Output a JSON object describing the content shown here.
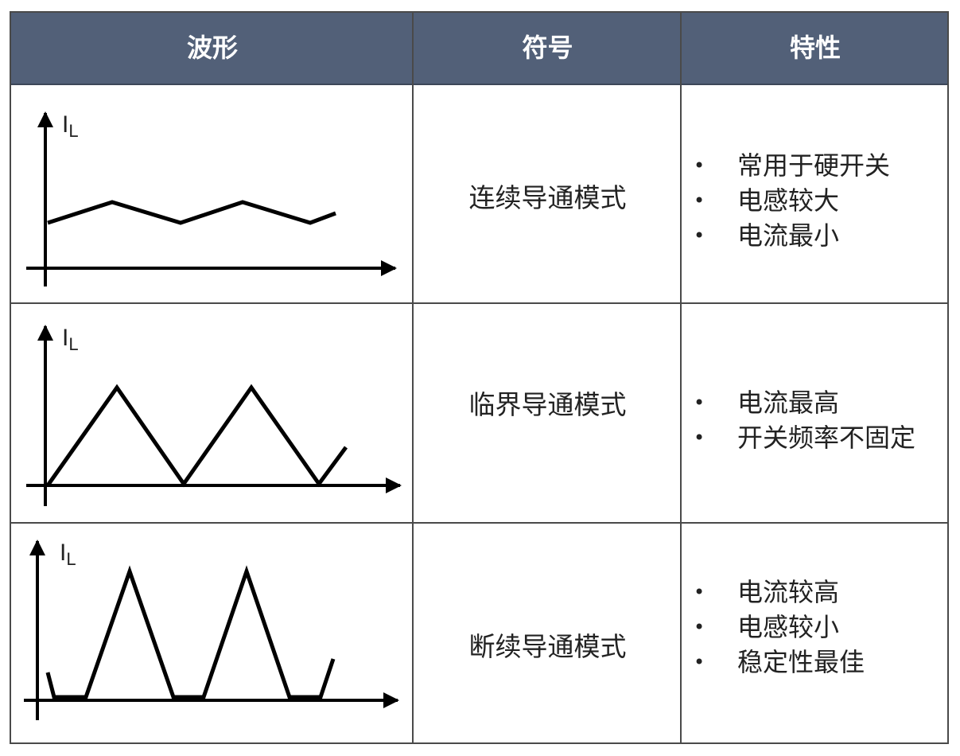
{
  "header": {
    "col1": "波形",
    "col2": "符号",
    "col3": "特性"
  },
  "header_color": "#526078",
  "rows": [
    {
      "axis_label": "I",
      "axis_sub": "L",
      "mode": "连续导通模式",
      "features": [
        "常用于硬开关",
        "电感较大",
        "电流最小"
      ],
      "waveform": "continuous"
    },
    {
      "axis_label": "I",
      "axis_sub": "L",
      "mode": "临界导通模式",
      "features": [
        "电流最高",
        "开关频率不固定"
      ],
      "waveform": "critical"
    },
    {
      "axis_label": "I",
      "axis_sub": "L",
      "mode": "断续导通模式",
      "features": [
        "电流较高",
        "电感较小",
        "稳定性最佳"
      ],
      "waveform": "discontinuous"
    }
  ]
}
